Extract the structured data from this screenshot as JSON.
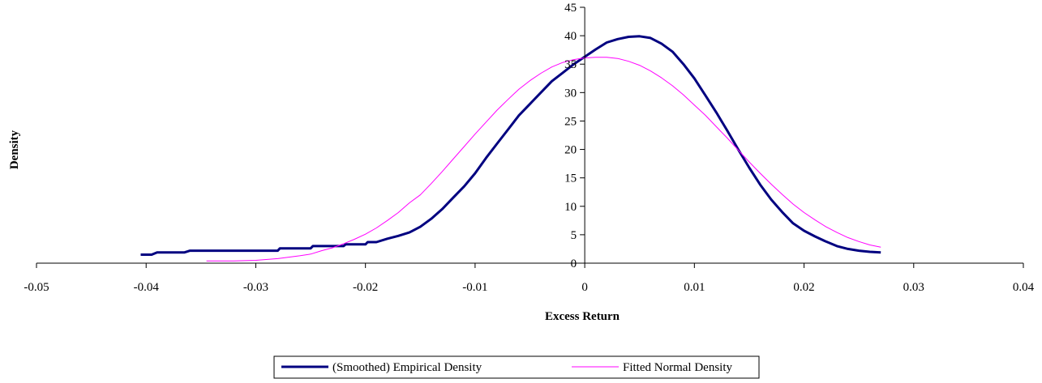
{
  "chart_data": {
    "type": "line",
    "title": "",
    "xlabel": "Excess Return",
    "ylabel": "Density",
    "xlim": [
      -0.05,
      0.04
    ],
    "ylim": [
      0,
      45
    ],
    "x_ticks": [
      -0.05,
      -0.04,
      -0.03,
      -0.02,
      -0.01,
      0,
      0.01,
      0.02,
      0.03,
      0.04
    ],
    "x_tick_labels": [
      "-0.05",
      "-0.04",
      "-0.03",
      "-0.02",
      "-0.01",
      "0",
      "0.01",
      "0.02",
      "0.03",
      "0.04"
    ],
    "y_ticks": [
      0,
      5,
      10,
      15,
      20,
      25,
      30,
      35,
      40,
      45
    ],
    "y_tick_labels": [
      "0",
      "5",
      "10",
      "15",
      "20",
      "25",
      "30",
      "35",
      "40",
      "45"
    ],
    "grid": false,
    "legend_position": "bottom",
    "series": [
      {
        "name": "(Smoothed) Empirical Density",
        "color": "#000080",
        "points": [
          [
            -0.0405,
            1.5
          ],
          [
            -0.0395,
            1.5
          ],
          [
            -0.039,
            1.9
          ],
          [
            -0.037,
            1.9
          ],
          [
            -0.0365,
            1.9
          ],
          [
            -0.036,
            2.2
          ],
          [
            -0.034,
            2.2
          ],
          [
            -0.032,
            2.2
          ],
          [
            -0.03,
            2.2
          ],
          [
            -0.028,
            2.2
          ],
          [
            -0.0278,
            2.6
          ],
          [
            -0.026,
            2.6
          ],
          [
            -0.025,
            2.6
          ],
          [
            -0.0248,
            3.0
          ],
          [
            -0.023,
            3.0
          ],
          [
            -0.022,
            3.0
          ],
          [
            -0.0218,
            3.3
          ],
          [
            -0.021,
            3.3
          ],
          [
            -0.02,
            3.3
          ],
          [
            -0.0198,
            3.7
          ],
          [
            -0.019,
            3.7
          ],
          [
            -0.018,
            4.3
          ],
          [
            -0.017,
            4.8
          ],
          [
            -0.016,
            5.4
          ],
          [
            -0.015,
            6.4
          ],
          [
            -0.014,
            7.8
          ],
          [
            -0.013,
            9.5
          ],
          [
            -0.012,
            11.5
          ],
          [
            -0.011,
            13.5
          ],
          [
            -0.01,
            15.8
          ],
          [
            -0.009,
            18.5
          ],
          [
            -0.008,
            21.0
          ],
          [
            -0.007,
            23.5
          ],
          [
            -0.006,
            26.0
          ],
          [
            -0.005,
            28.0
          ],
          [
            -0.004,
            30.0
          ],
          [
            -0.003,
            32.0
          ],
          [
            -0.002,
            33.5
          ],
          [
            -0.001,
            35.0
          ],
          [
            0.0,
            36.3
          ],
          [
            0.001,
            37.6
          ],
          [
            0.002,
            38.8
          ],
          [
            0.003,
            39.4
          ],
          [
            0.004,
            39.8
          ],
          [
            0.005,
            39.9
          ],
          [
            0.006,
            39.6
          ],
          [
            0.007,
            38.6
          ],
          [
            0.008,
            37.2
          ],
          [
            0.009,
            35.0
          ],
          [
            0.01,
            32.5
          ],
          [
            0.011,
            29.5
          ],
          [
            0.012,
            26.5
          ],
          [
            0.013,
            23.3
          ],
          [
            0.014,
            20.0
          ],
          [
            0.015,
            16.8
          ],
          [
            0.016,
            13.8
          ],
          [
            0.017,
            11.2
          ],
          [
            0.018,
            9.0
          ],
          [
            0.019,
            7.0
          ],
          [
            0.02,
            5.7
          ],
          [
            0.021,
            4.7
          ],
          [
            0.022,
            3.8
          ],
          [
            0.023,
            3.0
          ],
          [
            0.024,
            2.5
          ],
          [
            0.025,
            2.2
          ],
          [
            0.026,
            2.0
          ],
          [
            0.027,
            1.9
          ]
        ]
      },
      {
        "name": "Fitted Normal Density",
        "color": "#ff00ff",
        "points": [
          [
            -0.0345,
            0.4
          ],
          [
            -0.032,
            0.4
          ],
          [
            -0.03,
            0.5
          ],
          [
            -0.028,
            0.8
          ],
          [
            -0.026,
            1.3
          ],
          [
            -0.025,
            1.6
          ],
          [
            -0.024,
            2.2
          ],
          [
            -0.023,
            2.7
          ],
          [
            -0.022,
            3.4
          ],
          [
            -0.021,
            4.2
          ],
          [
            -0.02,
            5.1
          ],
          [
            -0.019,
            6.2
          ],
          [
            -0.018,
            7.5
          ],
          [
            -0.017,
            8.9
          ],
          [
            -0.016,
            10.6
          ],
          [
            -0.015,
            12.0
          ],
          [
            -0.014,
            14.0
          ],
          [
            -0.013,
            16.1
          ],
          [
            -0.012,
            18.3
          ],
          [
            -0.011,
            20.5
          ],
          [
            -0.01,
            22.7
          ],
          [
            -0.009,
            24.8
          ],
          [
            -0.008,
            26.9
          ],
          [
            -0.007,
            28.8
          ],
          [
            -0.006,
            30.6
          ],
          [
            -0.005,
            32.1
          ],
          [
            -0.004,
            33.4
          ],
          [
            -0.003,
            34.5
          ],
          [
            -0.002,
            35.3
          ],
          [
            -0.001,
            35.8
          ],
          [
            0.0,
            36.1
          ],
          [
            0.001,
            36.2
          ],
          [
            0.002,
            36.2
          ],
          [
            0.003,
            36.0
          ],
          [
            0.004,
            35.5
          ],
          [
            0.005,
            34.8
          ],
          [
            0.006,
            33.8
          ],
          [
            0.007,
            32.6
          ],
          [
            0.008,
            31.2
          ],
          [
            0.009,
            29.6
          ],
          [
            0.01,
            27.8
          ],
          [
            0.011,
            26.0
          ],
          [
            0.012,
            24.0
          ],
          [
            0.013,
            22.0
          ],
          [
            0.014,
            19.9
          ],
          [
            0.015,
            17.8
          ],
          [
            0.016,
            15.8
          ],
          [
            0.017,
            13.9
          ],
          [
            0.018,
            12.1
          ],
          [
            0.019,
            10.4
          ],
          [
            0.02,
            8.9
          ],
          [
            0.021,
            7.6
          ],
          [
            0.022,
            6.4
          ],
          [
            0.023,
            5.4
          ],
          [
            0.024,
            4.5
          ],
          [
            0.025,
            3.8
          ],
          [
            0.026,
            3.2
          ],
          [
            0.027,
            2.8
          ]
        ]
      }
    ]
  }
}
